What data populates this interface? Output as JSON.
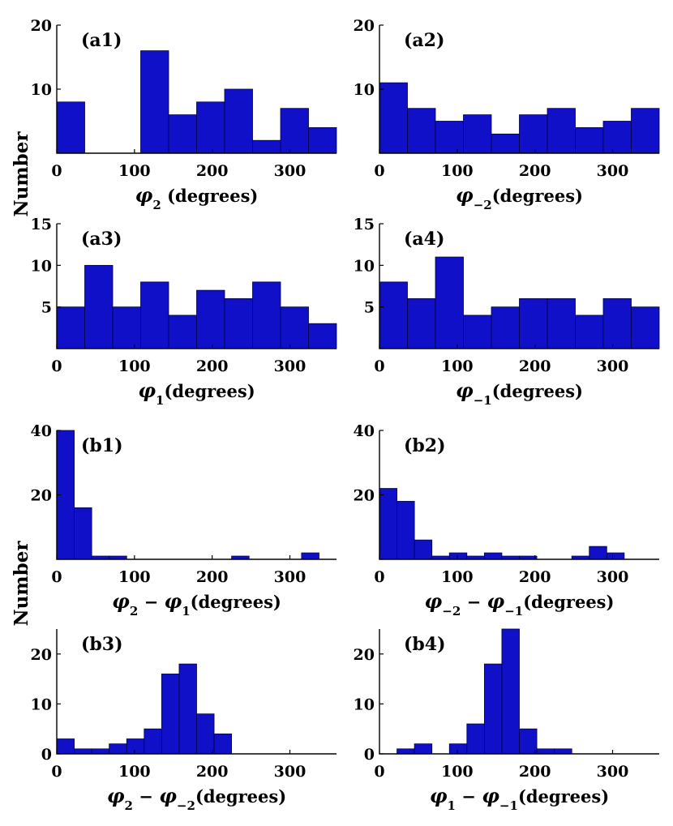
{
  "figure": {
    "ylabel_top": "Number",
    "ylabel_bottom": "Number"
  },
  "chart_data": [
    {
      "panel_label": "(a1)",
      "type": "bar",
      "bin_width": 36,
      "xlim": [
        0,
        360
      ],
      "ylim": [
        0,
        20
      ],
      "xticks": [
        0,
        100,
        200,
        300
      ],
      "yticks": [
        10,
        20
      ],
      "xlabel": {
        "sym": "φ",
        "sub": "2",
        "rest": " (degrees)"
      },
      "values": [
        8,
        0,
        0,
        16,
        6,
        8,
        10,
        2,
        7,
        4
      ]
    },
    {
      "panel_label": "(a2)",
      "type": "bar",
      "bin_width": 36,
      "xlim": [
        0,
        360
      ],
      "ylim": [
        0,
        20
      ],
      "xticks": [
        0,
        100,
        200,
        300
      ],
      "yticks": [
        10,
        20
      ],
      "xlabel": {
        "sym": "φ",
        "sub": "−2",
        "rest": "(degrees)"
      },
      "values": [
        11,
        7,
        5,
        6,
        3,
        6,
        7,
        4,
        5,
        7
      ]
    },
    {
      "panel_label": "(a3)",
      "type": "bar",
      "bin_width": 36,
      "xlim": [
        0,
        360
      ],
      "ylim": [
        0,
        15
      ],
      "xticks": [
        0,
        100,
        200,
        300
      ],
      "yticks": [
        5,
        10,
        15
      ],
      "xlabel": {
        "sym": "φ",
        "sub": "1",
        "rest": "(degrees)"
      },
      "values": [
        5,
        10,
        5,
        8,
        4,
        7,
        6,
        8,
        5,
        3
      ]
    },
    {
      "panel_label": "(a4)",
      "type": "bar",
      "bin_width": 36,
      "xlim": [
        0,
        360
      ],
      "ylim": [
        0,
        15
      ],
      "xticks": [
        0,
        100,
        200,
        300
      ],
      "yticks": [
        5,
        10,
        15
      ],
      "xlabel": {
        "sym": "φ",
        "sub": "−1",
        "rest": "(degrees)"
      },
      "values": [
        8,
        6,
        11,
        4,
        5,
        6,
        6,
        4,
        6,
        5
      ]
    },
    {
      "panel_label": "(b1)",
      "type": "bar",
      "bin_width": 22.5,
      "xlim": [
        0,
        360
      ],
      "ylim": [
        0,
        40
      ],
      "xticks": [
        0,
        100,
        200,
        300
      ],
      "yticks": [
        20,
        40
      ],
      "xlabel": {
        "sym": "φ",
        "sub": "2",
        "rest": " − ",
        "sym2": "φ",
        "sub2": "1",
        "rest2": "(degrees)"
      },
      "values": [
        40,
        16,
        1,
        1,
        0,
        0,
        0,
        0,
        0,
        0,
        1,
        0,
        0,
        0,
        2,
        0
      ]
    },
    {
      "panel_label": "(b2)",
      "type": "bar",
      "bin_width": 22.5,
      "xlim": [
        0,
        360
      ],
      "ylim": [
        0,
        40
      ],
      "xticks": [
        0,
        100,
        200,
        300
      ],
      "yticks": [
        20,
        40
      ],
      "xlabel": {
        "sym": "φ",
        "sub": "−2",
        "rest": " − ",
        "sym2": "φ",
        "sub2": "−1",
        "rest2": "(degrees)"
      },
      "values": [
        22,
        18,
        6,
        1,
        2,
        1,
        2,
        1,
        1,
        0,
        0,
        1,
        4,
        2
      ]
    },
    {
      "panel_label": "(b3)",
      "type": "bar",
      "bin_width": 22.5,
      "xlim": [
        0,
        360
      ],
      "ylim": [
        0,
        25
      ],
      "xticks": [
        0,
        100,
        200,
        300
      ],
      "yticks": [
        0,
        10,
        20
      ],
      "xlabel": {
        "sym": "φ",
        "sub": "2",
        "rest": " − ",
        "sym2": "φ",
        "sub2": "−2",
        "rest2": "(degrees)"
      },
      "values": [
        3,
        1,
        1,
        2,
        3,
        5,
        16,
        18,
        8,
        4
      ]
    },
    {
      "panel_label": "(b4)",
      "type": "bar",
      "bin_width": 22.5,
      "xlim": [
        0,
        360
      ],
      "ylim": [
        0,
        25
      ],
      "xticks": [
        0,
        100,
        200,
        300
      ],
      "yticks": [
        0,
        10,
        20
      ],
      "xlabel": {
        "sym": "φ",
        "sub": "1",
        "rest": " − ",
        "sym2": "φ",
        "sub2": "−1",
        "rest2": "(degrees)"
      },
      "values": [
        0,
        1,
        2,
        0,
        2,
        6,
        18,
        25,
        5,
        1,
        1
      ]
    }
  ]
}
